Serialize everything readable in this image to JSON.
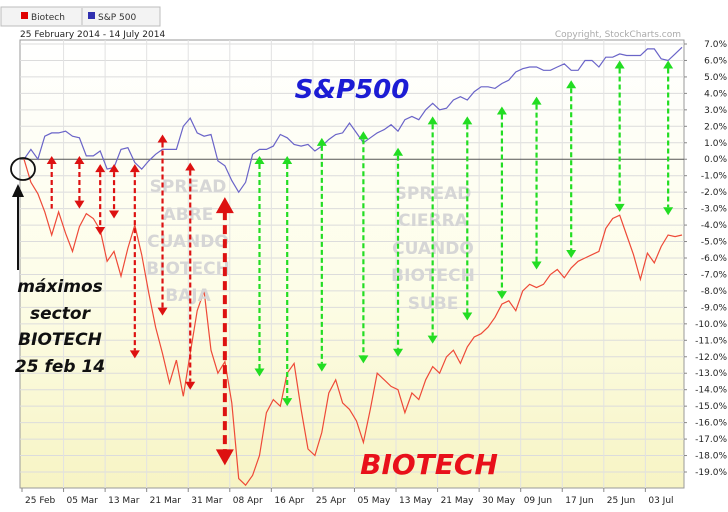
{
  "legend": [
    {
      "name": "Biotech",
      "color": "#e00000"
    },
    {
      "name": "S&P 500",
      "color": "#3030b0"
    }
  ],
  "date_range": "25 February 2014 - 14 July 2014",
  "copyright": "Copyright, StockCharts.com",
  "annotations": {
    "sp_label": "S&P500",
    "biotech_label": "BIOTECH",
    "spread_opens": [
      "SPREAD",
      "ABRE",
      "CUANDO",
      "BIOTECH",
      "BAJA"
    ],
    "spread_closes": [
      "SPREAD",
      "CIERRA",
      "CUANDO",
      "BIOTECH",
      "SUBE"
    ],
    "peak_note": [
      "máximos",
      "sector",
      "BIOTECH",
      "25 feb 14"
    ]
  },
  "chart_data": {
    "type": "line",
    "x_labels": [
      "25 Feb",
      "05 Mar",
      "13 Mar",
      "21 Mar",
      "31 Mar",
      "08 Apr",
      "16 Apr",
      "25 Apr",
      "05 May",
      "13 May",
      "21 May",
      "30 May",
      "09 Jun",
      "17 Jun",
      "25 Jun",
      "03 Jul"
    ],
    "x_label_index": [
      0,
      6,
      12,
      18,
      24,
      30,
      36,
      42,
      48,
      54,
      60,
      66,
      72,
      78,
      84,
      90
    ],
    "n_points": 96,
    "y_ticks": [
      "7.0%",
      "6.0%",
      "5.0%",
      "4.0%",
      "3.0%",
      "2.0%",
      "1.0%",
      "0.0%",
      "-1.0%",
      "-2.0%",
      "-3.0%",
      "-4.0%",
      "-5.0%",
      "-6.0%",
      "-7.0%",
      "-8.0%",
      "-9.0%",
      "-10.0%",
      "-11.0%",
      "-12.0%",
      "-13.0%",
      "-14.0%",
      "-15.0%",
      "-16.0%",
      "-17.0%",
      "-18.0%",
      "-19.0%"
    ],
    "ylim": [
      -20,
      7.6
    ],
    "series": [
      {
        "name": "Biotech",
        "color": "#ee4a38",
        "values": [
          0,
          -1.4,
          -2.1,
          -3.2,
          -4.6,
          -3.2,
          -4.5,
          -5.6,
          -4.1,
          -3.3,
          -3.6,
          -4.3,
          -6.2,
          -5.6,
          -7.1,
          -5.4,
          -4.0,
          -5.8,
          -8.1,
          -10.2,
          -11.8,
          -13.6,
          -12.2,
          -14.4,
          -11.8,
          -9.2,
          -8.0,
          -11.6,
          -13.0,
          -12.3,
          -14.8,
          -19.4,
          -19.8,
          -19.2,
          -18.0,
          -15.4,
          -14.6,
          -15.0,
          -13.0,
          -12.4,
          -15.2,
          -17.6,
          -18.0,
          -16.6,
          -14.2,
          -13.4,
          -14.8,
          -15.2,
          -15.9,
          -17.2,
          -15.2,
          -13.0,
          -13.4,
          -13.8,
          -14.0,
          -15.4,
          -14.2,
          -14.6,
          -13.4,
          -12.6,
          -13.0,
          -12.0,
          -11.6,
          -12.4,
          -11.4,
          -10.8,
          -10.6,
          -10.2,
          -9.6,
          -8.8,
          -8.6,
          -9.2,
          -8.0,
          -7.6,
          -7.8,
          -7.6,
          -7.0,
          -6.7,
          -7.2,
          -6.6,
          -6.2,
          -6.0,
          -5.8,
          -5.6,
          -4.2,
          -3.6,
          -3.4,
          -4.6,
          -5.8,
          -7.3,
          -5.7,
          -6.3,
          -5.3,
          -4.6,
          -4.7,
          -4.6
        ]
      },
      {
        "name": "S&P 500",
        "color": "#6a64c8",
        "values": [
          0,
          0.6,
          0.0,
          1.4,
          1.6,
          1.6,
          1.7,
          1.4,
          1.3,
          0.2,
          0.2,
          0.5,
          -0.6,
          -0.5,
          0.6,
          0.7,
          -0.2,
          -0.6,
          -0.1,
          0.3,
          0.6,
          0.6,
          0.6,
          2.0,
          2.5,
          1.6,
          1.4,
          1.5,
          -0.1,
          -0.4,
          -1.3,
          -2.0,
          -1.4,
          0.3,
          0.6,
          0.6,
          0.8,
          1.5,
          1.3,
          0.9,
          0.8,
          0.9,
          0.5,
          0.8,
          1.2,
          1.5,
          1.6,
          2.2,
          1.6,
          1.0,
          1.3,
          1.6,
          1.8,
          2.1,
          1.7,
          2.4,
          2.6,
          2.4,
          3.0,
          3.4,
          3.0,
          3.1,
          3.6,
          3.8,
          3.6,
          4.1,
          4.4,
          4.4,
          4.3,
          4.6,
          4.8,
          5.3,
          5.5,
          5.6,
          5.6,
          5.4,
          5.4,
          5.6,
          5.8,
          5.4,
          5.4,
          6.0,
          6.0,
          5.6,
          6.2,
          6.2,
          6.4,
          6.3,
          6.3,
          6.3,
          6.7,
          6.7,
          6.1,
          6.0,
          6.4,
          6.8
        ]
      }
    ],
    "spread_arrows": [
      {
        "index": 4,
        "from": -3.0,
        "to": 0.2,
        "color": "red",
        "style": "up"
      },
      {
        "index": 8,
        "from": -3.0,
        "to": 0.2,
        "color": "red",
        "style": "both"
      },
      {
        "index": 11,
        "from": -4.6,
        "to": -0.3,
        "color": "red",
        "style": "both"
      },
      {
        "index": 13,
        "from": -3.6,
        "to": -0.3,
        "color": "red",
        "style": "both"
      },
      {
        "index": 16,
        "from": -12.1,
        "to": -0.3,
        "color": "red",
        "style": "both"
      },
      {
        "index": 20,
        "from": -9.5,
        "to": 1.5,
        "color": "red",
        "style": "both"
      },
      {
        "index": 24,
        "from": -14.0,
        "to": -0.2,
        "color": "red",
        "style": "both"
      },
      {
        "index": 29,
        "from": -18.6,
        "to": -2.3,
        "color": "red",
        "style": "big"
      },
      {
        "index": 34,
        "from": -13.2,
        "to": 0.2,
        "color": "green",
        "style": "both"
      },
      {
        "index": 38,
        "from": -15.0,
        "to": 0.2,
        "color": "green",
        "style": "both"
      },
      {
        "index": 43,
        "from": -12.9,
        "to": 1.3,
        "color": "green",
        "style": "both"
      },
      {
        "index": 49,
        "from": -12.4,
        "to": 1.7,
        "color": "green",
        "style": "both"
      },
      {
        "index": 54,
        "from": -12.0,
        "to": 0.7,
        "color": "green",
        "style": "both"
      },
      {
        "index": 59,
        "from": -11.2,
        "to": 2.6,
        "color": "green",
        "style": "both"
      },
      {
        "index": 64,
        "from": -9.8,
        "to": 2.6,
        "color": "green",
        "style": "both"
      },
      {
        "index": 69,
        "from": -8.5,
        "to": 3.2,
        "color": "green",
        "style": "both"
      },
      {
        "index": 74,
        "from": -6.7,
        "to": 3.8,
        "color": "green",
        "style": "both"
      },
      {
        "index": 79,
        "from": -6.0,
        "to": 4.8,
        "color": "green",
        "style": "both"
      },
      {
        "index": 86,
        "from": -3.2,
        "to": 6.0,
        "color": "green",
        "style": "both"
      },
      {
        "index": 93,
        "from": -3.4,
        "to": 6.0,
        "color": "green",
        "style": "both"
      }
    ]
  }
}
